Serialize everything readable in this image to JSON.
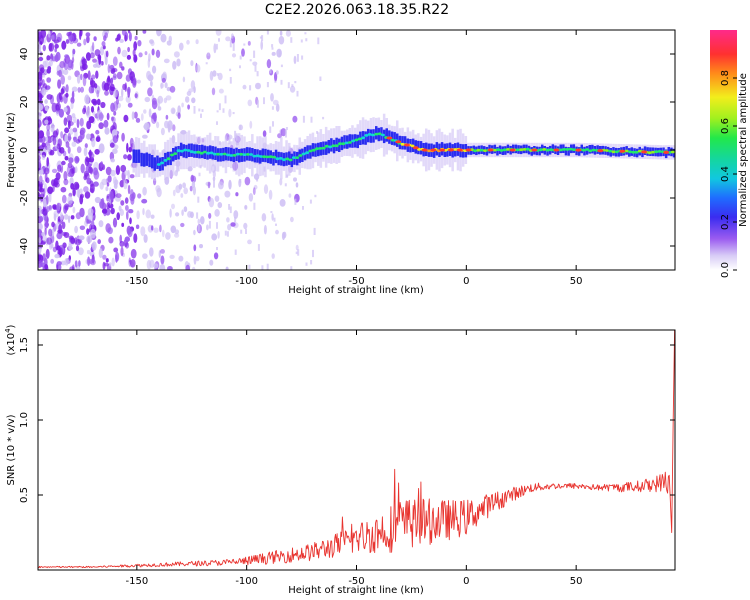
{
  "title": "C2E2.2026.063.18.35.R22",
  "colors": {
    "background": "#ffffff",
    "axis": "#000000",
    "snr_line": "#e8342f",
    "colormap": [
      "#ffffff",
      "#cfc0f5",
      "#9b5cf0",
      "#7a1fe6",
      "#2a2cf0",
      "#1f8cff",
      "#11d6d6",
      "#22e86a",
      "#8ff01f",
      "#f2ee1c",
      "#ff9e1a",
      "#ff3d2a",
      "#ff2a8a"
    ]
  },
  "chart_data": [
    {
      "type": "heatmap",
      "xlabel": "Height of straight line (km)",
      "ylabel": "Frequency (Hz)",
      "xlim": [
        -195,
        95
      ],
      "ylim": [
        -50,
        50
      ],
      "xticks": [
        -150,
        -100,
        -50,
        0,
        50
      ],
      "yticks": [
        -40,
        -20,
        0,
        20,
        40
      ],
      "colorbar": {
        "label": "Normalized spectral amplitude",
        "range": [
          0,
          1
        ],
        "ticks": [
          0.0,
          0.2,
          0.4,
          0.6,
          0.8
        ]
      },
      "ridge": {
        "description_points_x": [
          -150,
          -140,
          -130,
          -120,
          -110,
          -100,
          -90,
          -80,
          -70,
          -60,
          -50,
          -45,
          -40,
          -30,
          -20,
          0,
          20,
          50,
          90
        ],
        "frequency_hz": [
          -3,
          -6,
          0,
          -1,
          -2,
          -2,
          -3,
          -4,
          0,
          2,
          4,
          6,
          7,
          3,
          0,
          0,
          0,
          0,
          -1
        ]
      }
    },
    {
      "type": "line",
      "xlabel": "Height of straight line (km)",
      "ylabel": "SNR (10 * v/v)",
      "y_multiplier": "(x10",
      "y_multiplier_exp": "4",
      "y_multiplier_close": ")",
      "xlim": [
        -195,
        95
      ],
      "ylim": [
        0,
        1.6
      ],
      "xticks": [
        -150,
        -100,
        -50,
        0,
        50
      ],
      "yticks": [
        0.5,
        1.0,
        1.5
      ],
      "ytick_labels": [
        "0.5",
        "1.0",
        "1.5"
      ],
      "series": [
        {
          "name": "SNR",
          "x": [
            -195,
            -170,
            -150,
            -130,
            -110,
            -100,
            -90,
            -80,
            -70,
            -60,
            -50,
            -40,
            -30,
            -20,
            -10,
            0,
            10,
            20,
            30,
            40,
            50,
            60,
            70,
            80,
            88,
            93,
            95
          ],
          "y": [
            0.02,
            0.02,
            0.03,
            0.04,
            0.05,
            0.06,
            0.08,
            0.1,
            0.12,
            0.16,
            0.21,
            0.25,
            0.3,
            0.32,
            0.33,
            0.35,
            0.43,
            0.5,
            0.55,
            0.56,
            0.56,
            0.55,
            0.55,
            0.56,
            0.58,
            0.6,
            1.6
          ],
          "noise_amplitude": [
            0.005,
            0.005,
            0.01,
            0.015,
            0.02,
            0.03,
            0.04,
            0.05,
            0.06,
            0.08,
            0.1,
            0.14,
            0.18,
            0.16,
            0.14,
            0.12,
            0.08,
            0.05,
            0.03,
            0.02,
            0.02,
            0.02,
            0.03,
            0.04,
            0.06,
            0.1,
            0.1
          ]
        }
      ]
    }
  ]
}
